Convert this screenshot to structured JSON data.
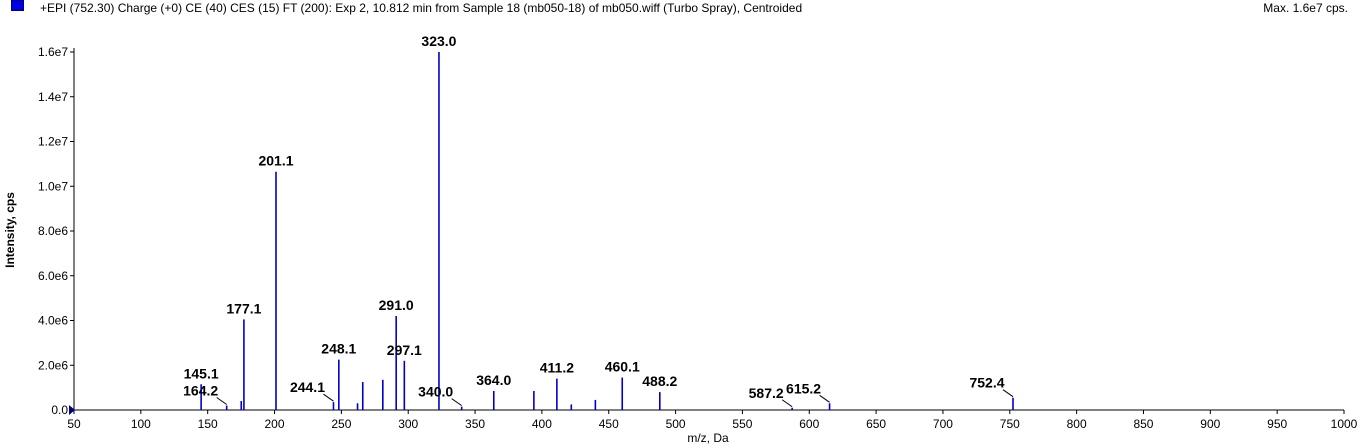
{
  "header": {
    "title": "+EPI (752.30) Charge (+0) CE (40) CES (15) FT (200): Exp 2, 10.812 min from Sample 18 (mb050-18) of mb050.wiff (Turbo Spray), Centroided",
    "max": "Max. 1.6e7 cps."
  },
  "colors": {
    "peak": "#0000cc",
    "axis": "#000000",
    "swatch": "#0000e6"
  },
  "chart_data": {
    "type": "bar",
    "xlabel": "m/z, Da",
    "ylabel": "Intensity, cps",
    "xlim": [
      50,
      1000
    ],
    "ylim": [
      0,
      16000000
    ],
    "grid": false,
    "x_ticks": [
      50,
      100,
      150,
      200,
      250,
      300,
      350,
      400,
      450,
      500,
      550,
      600,
      650,
      700,
      750,
      800,
      850,
      900,
      950,
      1000
    ],
    "y_ticks": [
      {
        "value": 0,
        "label": "0.0"
      },
      {
        "value": 2000000,
        "label": "2.0e6"
      },
      {
        "value": 4000000,
        "label": "4.0e6"
      },
      {
        "value": 6000000,
        "label": "6.0e6"
      },
      {
        "value": 8000000,
        "label": "8.0e6"
      },
      {
        "value": 10000000,
        "label": "1.0e7"
      },
      {
        "value": 12000000,
        "label": "1.2e7"
      },
      {
        "value": 14000000,
        "label": "1.4e7"
      },
      {
        "value": 16000000,
        "label": "1.6e7"
      }
    ],
    "peaks": [
      {
        "mz": 145.1,
        "intensity": 1150000,
        "label": "145.1"
      },
      {
        "mz": 164.2,
        "intensity": 200000,
        "label": "164.2"
      },
      {
        "mz": 175.1,
        "intensity": 400000
      },
      {
        "mz": 177.1,
        "intensity": 4050000,
        "label": "177.1"
      },
      {
        "mz": 201.1,
        "intensity": 10650000,
        "label": "201.1"
      },
      {
        "mz": 244.1,
        "intensity": 350000,
        "label": "244.1"
      },
      {
        "mz": 248.1,
        "intensity": 2250000,
        "label": "248.1"
      },
      {
        "mz": 262.1,
        "intensity": 300000
      },
      {
        "mz": 266.0,
        "intensity": 1250000
      },
      {
        "mz": 281.0,
        "intensity": 1350000
      },
      {
        "mz": 291.0,
        "intensity": 4200000,
        "label": "291.0"
      },
      {
        "mz": 297.1,
        "intensity": 2200000,
        "label": "297.1"
      },
      {
        "mz": 323.0,
        "intensity": 16000000,
        "label": "323.0"
      },
      {
        "mz": 340.0,
        "intensity": 150000,
        "label": "340.0"
      },
      {
        "mz": 364.0,
        "intensity": 850000,
        "label": "364.0"
      },
      {
        "mz": 394.0,
        "intensity": 850000
      },
      {
        "mz": 411.2,
        "intensity": 1400000,
        "label": "411.2"
      },
      {
        "mz": 422.0,
        "intensity": 250000
      },
      {
        "mz": 440.0,
        "intensity": 450000
      },
      {
        "mz": 460.1,
        "intensity": 1450000,
        "label": "460.1"
      },
      {
        "mz": 488.2,
        "intensity": 800000,
        "label": "488.2"
      },
      {
        "mz": 587.2,
        "intensity": 100000,
        "label": "587.2"
      },
      {
        "mz": 615.2,
        "intensity": 300000,
        "label": "615.2"
      },
      {
        "mz": 752.4,
        "intensity": 550000,
        "label": "752.4"
      }
    ]
  }
}
